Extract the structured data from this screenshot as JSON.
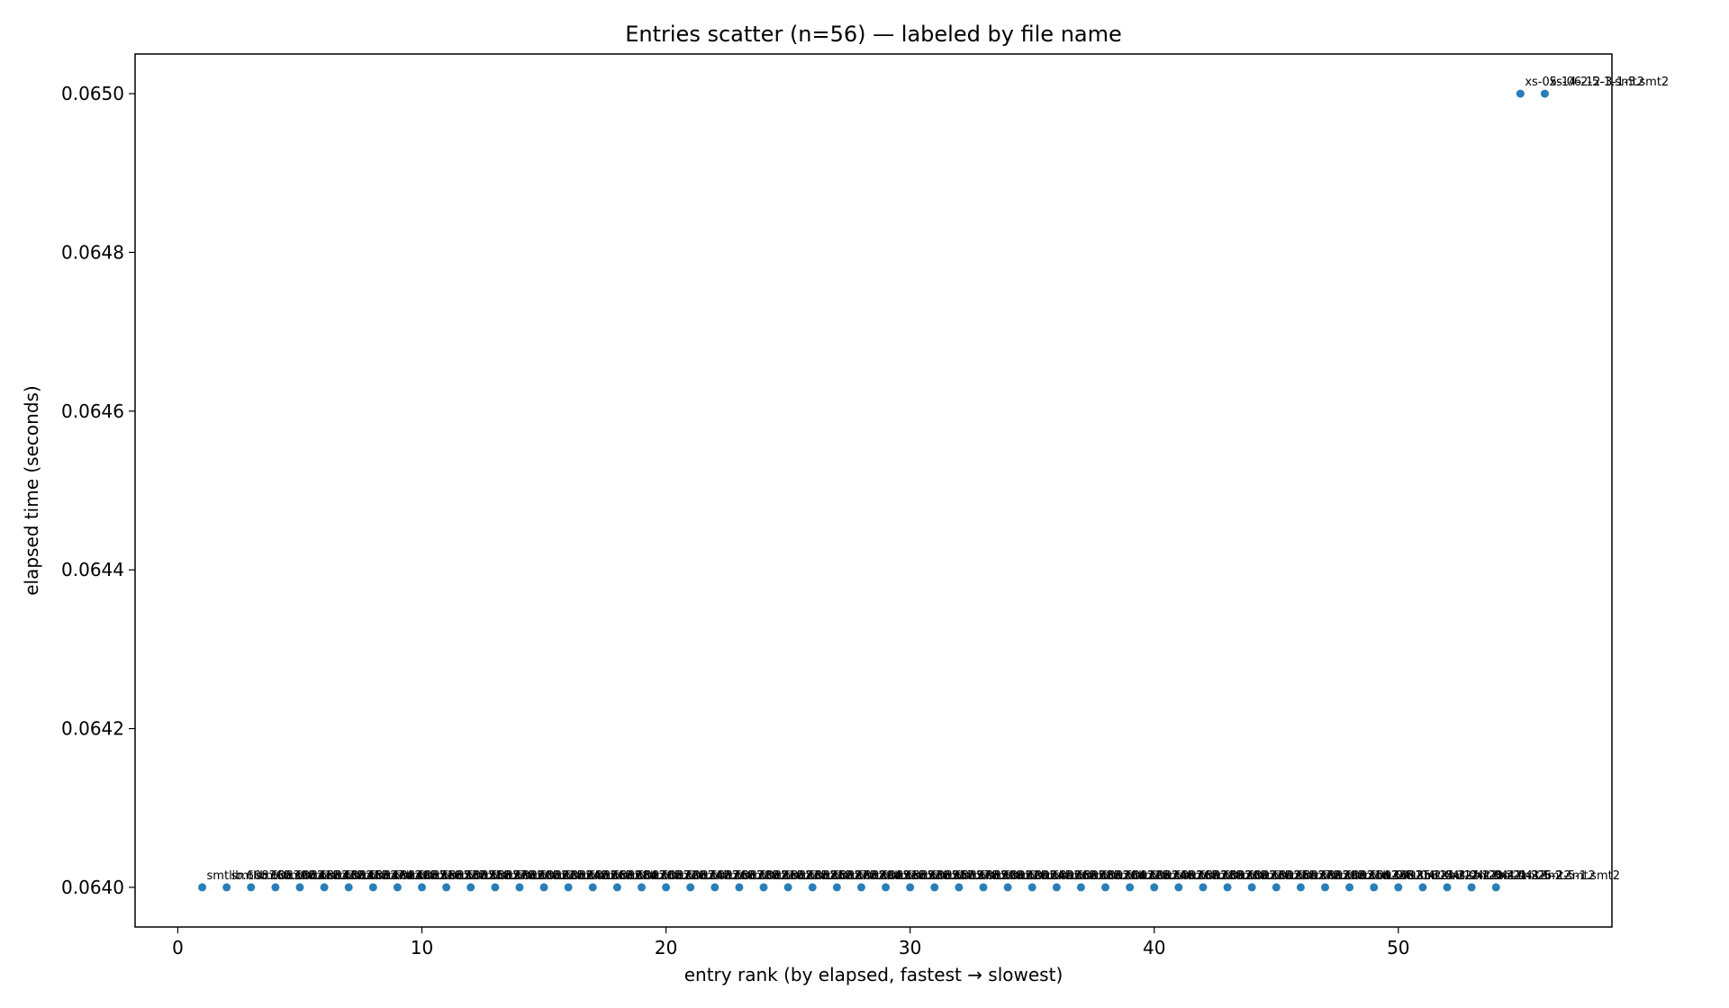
{
  "chart_data": {
    "type": "scatter",
    "title": "Entries scatter (n=56) — labeled by file name",
    "xlabel": "entry rank (by elapsed, fastest → slowest)",
    "ylabel": "elapsed time (seconds)",
    "xlim": [
      -1.75,
      58.75
    ],
    "ylim": [
      0.06395,
      0.06505
    ],
    "xticks": [
      0,
      10,
      20,
      30,
      40,
      50
    ],
    "yticks": [
      0.064,
      0.0642,
      0.0644,
      0.0646,
      0.0648,
      0.065
    ],
    "ytick_labels": [
      "0.0640",
      "0.0642",
      "0.0644",
      "0.0646",
      "0.0648",
      "0.0650"
    ],
    "grid": false,
    "legend": "none",
    "point_color": "#1f77b4",
    "series": [
      {
        "x": [
          1,
          2,
          3,
          4,
          5,
          6,
          7,
          8,
          9,
          10,
          11,
          12,
          13,
          14,
          15,
          16,
          17,
          18,
          19,
          20,
          21,
          22,
          23,
          24,
          25,
          26,
          27,
          28,
          29,
          30,
          31,
          32,
          33,
          34,
          35,
          36,
          37,
          38,
          39,
          40,
          41,
          42,
          43,
          44,
          45,
          46,
          47,
          48,
          49,
          50,
          51,
          52,
          53,
          54,
          55,
          56
        ],
        "y": [
          0.064,
          0.064,
          0.064,
          0.064,
          0.064,
          0.064,
          0.064,
          0.064,
          0.064,
          0.064,
          0.064,
          0.064,
          0.064,
          0.064,
          0.064,
          0.064,
          0.064,
          0.064,
          0.064,
          0.064,
          0.064,
          0.064,
          0.064,
          0.064,
          0.064,
          0.064,
          0.064,
          0.064,
          0.064,
          0.064,
          0.064,
          0.064,
          0.064,
          0.064,
          0.064,
          0.064,
          0.064,
          0.064,
          0.064,
          0.064,
          0.064,
          0.064,
          0.064,
          0.064,
          0.064,
          0.064,
          0.064,
          0.064,
          0.064,
          0.064,
          0.064,
          0.064,
          0.064,
          0.064,
          0.065,
          0.065
        ],
        "labels": [
          "smtlib.608369.smt2",
          "smtlib.608390.smt2",
          "smtlib.608411.smt2",
          "smtlib.608432.smt2",
          "smtlib.608453.smt2",
          "smtlib.608474.smt2",
          "smtlib.608495.smt2",
          "smtlib.608516.smt2",
          "smtlib.608537.smt2",
          "smtlib.608558.smt2",
          "smtlib.608579.smt2",
          "smtlib.608600.smt2",
          "smtlib.608621.smt2",
          "smtlib.608642.smt2",
          "smtlib.608663.smt2",
          "smtlib.608684.smt2",
          "smtlib.608705.smt2",
          "smtlib.608726.smt2",
          "smtlib.608747.smt2",
          "smtlib.608768.smt2",
          "smtlib.608789.smt2",
          "smtlib.608810.smt2",
          "smtlib.608831.smt2",
          "smtlib.608852.smt2",
          "smtlib.608873.smt2",
          "smtlib.608894.smt2",
          "smtlib.608915.smt2",
          "smtlib.608936.smt2",
          "smtlib.608957.smt2",
          "smtlib.608978.smt2",
          "smtlib.608999.smt2",
          "smtlib.609020.smt2",
          "smtlib.609041.smt2",
          "smtlib.609062.smt2",
          "smtlib.609083.smt2",
          "smtlib.609104.smt2",
          "smtlib.609125.smt2",
          "smtlib.609146.smt2",
          "smtlib.609167.smt2",
          "smtlib.609188.smt2",
          "smtlib.609209.smt2",
          "smtlib.609230.smt2",
          "smtlib.609251.smt2",
          "smtlib.609272.smt2",
          "smtlib.609293.smt2",
          "smtlib.609314.smt2",
          "smtlib.609335.smt2",
          "smtlib.609356.smt2",
          "xs-04-11-2-5-2.smt2",
          "xs-04-14-3-2-1.smt2",
          "xs-04-17-2-3-2.smt2",
          "xs-04-20-4-1-2.smt2",
          "xs-04-21-3-5-2.smt2",
          "xs-04-26-2-5-1.smt2",
          "xs-05-14-2-5-1.smt2",
          "xs-06-12-3-1-5.smt2"
        ]
      }
    ]
  }
}
